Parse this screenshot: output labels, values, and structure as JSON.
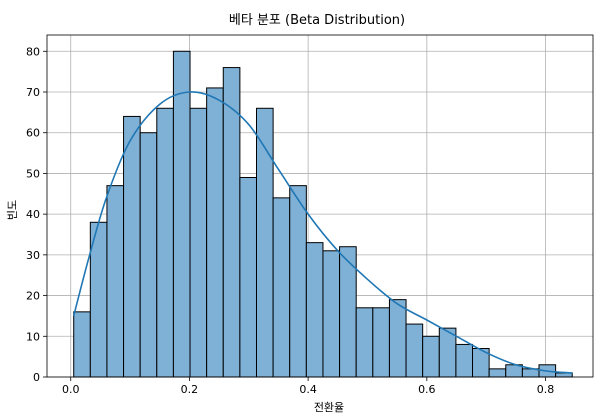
{
  "chart_data": {
    "type": "bar",
    "title": "베타 분포 (Beta Distribution)",
    "xlabel": "전환율",
    "ylabel": "빈도",
    "xlim": [
      -0.04,
      0.88
    ],
    "ylim": [
      0,
      84
    ],
    "grid": true,
    "x_ticks": [
      0.0,
      0.2,
      0.4,
      0.6,
      0.8
    ],
    "x_tick_labels": [
      "0.0",
      "0.2",
      "0.4",
      "0.6",
      "0.8"
    ],
    "y_ticks": [
      0,
      10,
      20,
      30,
      40,
      50,
      60,
      70,
      80
    ],
    "y_tick_labels": [
      "0",
      "10",
      "20",
      "30",
      "40",
      "50",
      "60",
      "70",
      "80"
    ],
    "bin_edges": [
      0.005,
      0.033,
      0.061,
      0.089,
      0.117,
      0.145,
      0.173,
      0.201,
      0.229,
      0.257,
      0.285,
      0.313,
      0.341,
      0.369,
      0.397,
      0.425,
      0.453,
      0.481,
      0.509,
      0.537,
      0.565,
      0.593,
      0.621,
      0.649,
      0.677,
      0.705,
      0.733,
      0.761,
      0.789,
      0.817,
      0.845
    ],
    "values": [
      16,
      38,
      47,
      64,
      60,
      66,
      80,
      66,
      71,
      76,
      49,
      66,
      44,
      47,
      33,
      31,
      32,
      17,
      17,
      19,
      13,
      10,
      12,
      8,
      7,
      2,
      3,
      2,
      3,
      1
    ],
    "kde": {
      "x": [
        0.005,
        0.03,
        0.06,
        0.1,
        0.15,
        0.2,
        0.25,
        0.3,
        0.35,
        0.4,
        0.45,
        0.5,
        0.55,
        0.6,
        0.65,
        0.7,
        0.75,
        0.8,
        0.845
      ],
      "y": [
        15,
        29,
        44,
        58,
        67,
        70,
        68,
        62,
        51,
        40,
        31,
        24,
        18,
        14,
        10,
        6,
        3,
        1.5,
        1
      ]
    },
    "colors": {
      "bar_fill": "#7fb0d6",
      "bar_edge": "#000000",
      "kde_line": "#1f77b4",
      "grid": "#b0b0b0"
    }
  }
}
